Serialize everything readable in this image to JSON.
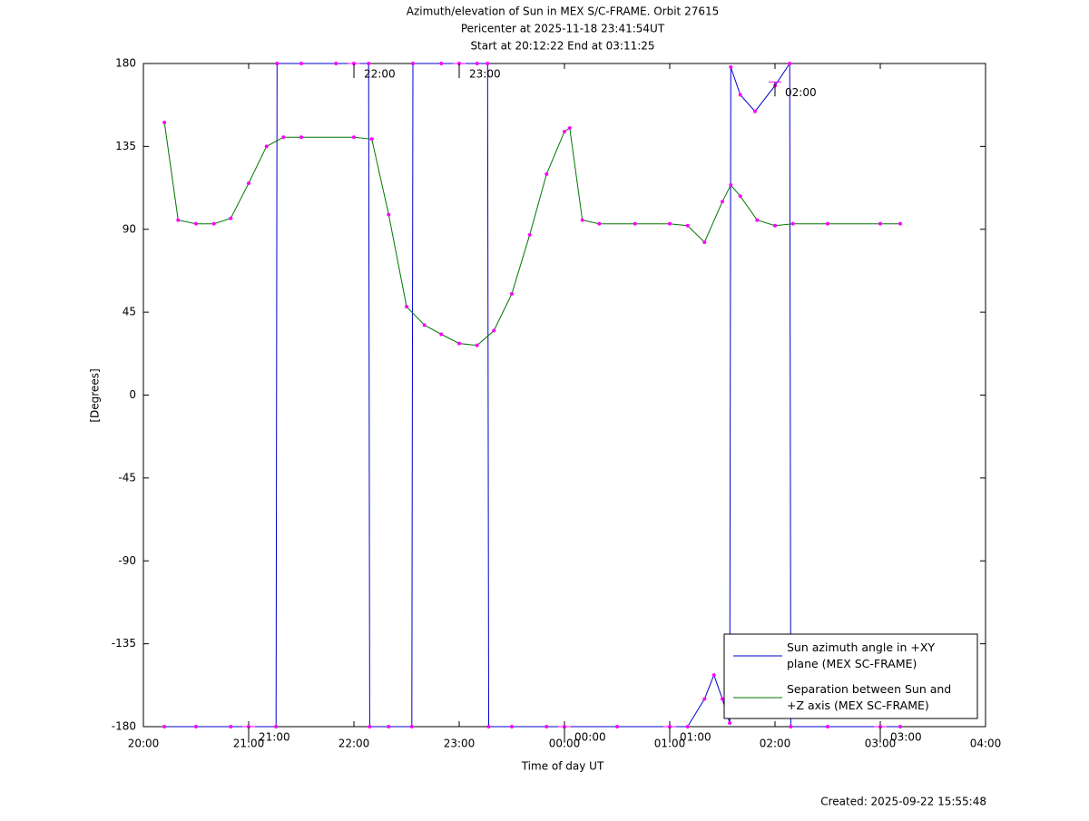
{
  "chart_data": {
    "type": "line",
    "title": "Azimuth/elevation of Sun in MEX S/C-FRAME.  Orbit 27615",
    "subtitle": "Pericenter at 2025-11-18 23:41:54UT",
    "subtitle2": "Start at 20:12:22 End at 03:11:25",
    "xlabel": "Time of day UT",
    "ylabel": "[Degrees]",
    "footer": "Created: 2025-09-22 15:55:48",
    "xlim": [
      20,
      28
    ],
    "xticks": [
      {
        "value": 20,
        "label": "20:00"
      },
      {
        "value": 21,
        "label": "21:00"
      },
      {
        "value": 22,
        "label": "22:00"
      },
      {
        "value": 23,
        "label": "23:00"
      },
      {
        "value": 24,
        "label": "00:00"
      },
      {
        "value": 25,
        "label": "01:00"
      },
      {
        "value": 26,
        "label": "02:00"
      },
      {
        "value": 27,
        "label": "03:00"
      },
      {
        "value": 28,
        "label": "04:00"
      }
    ],
    "ylim": [
      -180,
      180
    ],
    "yticks": [
      180,
      135,
      90,
      45,
      0,
      -45,
      -90,
      -135,
      -180
    ],
    "legend": "lower right",
    "marker_color": "#ff00ff",
    "series": [
      {
        "name": "Sun azimuth angle in +XY plane (MEX SC-FRAME)",
        "color": "#0000cc",
        "x": [
          20.2,
          20.5,
          20.83,
          21.0,
          21.26,
          21.27,
          21.5,
          21.83,
          22.0,
          22.14,
          22.15,
          22.33,
          22.55,
          22.56,
          22.83,
          23.0,
          23.17,
          23.27,
          23.28,
          23.5,
          23.83,
          24.0,
          24.5,
          25.0,
          25.17,
          25.33,
          25.42,
          25.5,
          25.57,
          25.58,
          25.67,
          25.81,
          26.0,
          26.14,
          26.15,
          26.5,
          27.0,
          27.19
        ],
        "values": [
          -180,
          -180,
          -180,
          -180,
          -180,
          180,
          180,
          180,
          180,
          180,
          -180,
          -180,
          -180,
          180,
          180,
          180,
          180,
          180,
          -180,
          -180,
          -180,
          -180,
          -180,
          -180,
          -180,
          -165,
          -152,
          -165,
          -178,
          178,
          163,
          154,
          168,
          180,
          -180,
          -180,
          -180,
          -180
        ]
      },
      {
        "name": "Separation between Sun and +Z axis (MEX SC-FRAME)",
        "color": "#007700",
        "x": [
          20.2,
          20.33,
          20.5,
          20.67,
          20.83,
          21.0,
          21.17,
          21.33,
          21.5,
          22.0,
          22.17,
          22.33,
          22.5,
          22.67,
          22.83,
          23.0,
          23.17,
          23.33,
          23.5,
          23.67,
          23.83,
          24.0,
          24.05,
          24.17,
          24.33,
          24.67,
          25.0,
          25.17,
          25.33,
          25.5,
          25.58,
          25.67,
          25.83,
          26.0,
          26.17,
          26.5,
          27.0,
          27.19
        ],
        "values": [
          148,
          95,
          93,
          93,
          96,
          115,
          135,
          140,
          140,
          140,
          139,
          98,
          48,
          38,
          33,
          28,
          27,
          35,
          55,
          87,
          120,
          143,
          145,
          95,
          93,
          93,
          93,
          92,
          83,
          105,
          114,
          108,
          95,
          92,
          93,
          93,
          93,
          93
        ]
      }
    ],
    "hour_markers": [
      {
        "x": 21,
        "y": -180,
        "label": "21:00"
      },
      {
        "x": 22,
        "y": 180,
        "label": "22:00"
      },
      {
        "x": 23,
        "y": 180,
        "label": "23:00"
      },
      {
        "x": 24,
        "y": -180,
        "label": "00:00"
      },
      {
        "x": 25,
        "y": -180,
        "label": "01:00"
      },
      {
        "x": 26,
        "y": 170,
        "label": "02:00"
      },
      {
        "x": 27,
        "y": -180,
        "label": "03:00"
      }
    ]
  }
}
